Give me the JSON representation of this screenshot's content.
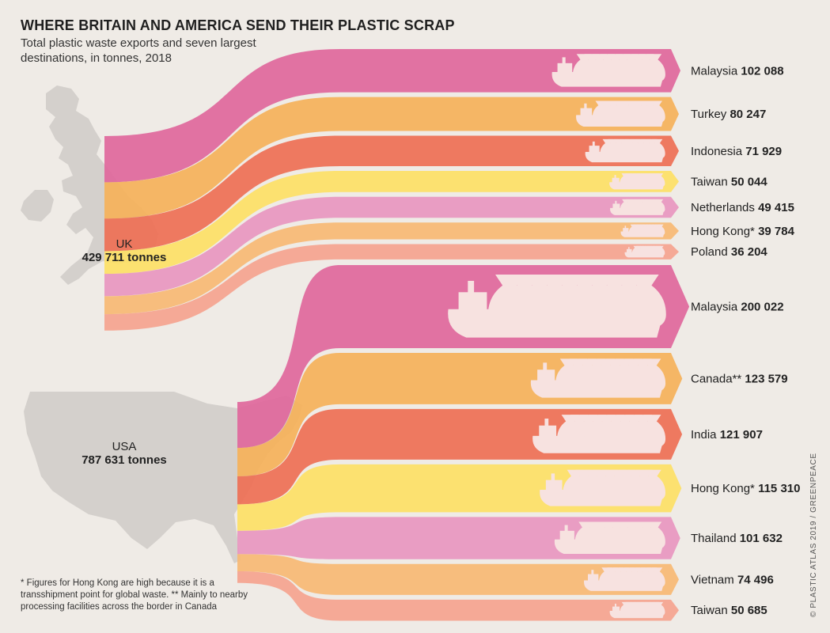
{
  "header": {
    "title": "WHERE BRITAIN AND AMERICA SEND THEIR PLASTIC SCRAP",
    "subtitle": "Total plastic waste exports and seven largest destinations, in tonnes, 2018"
  },
  "footnote": "* Figures for Hong Kong are high because it is a transshipment point for global waste. ** Mainly to nearby processing facilities across the border in Canada",
  "credit": "© PLASTIC ATLAS 2019 / GREENPEACE",
  "colors": {
    "background": "#efebe6",
    "map": "#d4d0cc",
    "ship": "#f7e2e0",
    "palette": [
      "#e0679c",
      "#f5b15a",
      "#ee6f55",
      "#fde066",
      "#e896c0",
      "#f7b874",
      "#f5a38f"
    ]
  },
  "icons": {
    "ship": "cargo-ship-icon",
    "sack": "waste-sack-icon"
  },
  "chart_data": {
    "type": "sankey",
    "unit": "tonnes",
    "year": 2018,
    "sources": [
      {
        "id": "uk",
        "name": "UK",
        "total": 429711,
        "total_label": "429 711 tonnes",
        "destinations": [
          {
            "name": "Malaysia",
            "value": 102088,
            "value_label": "102 088"
          },
          {
            "name": "Turkey",
            "value": 80247,
            "value_label": "80 247"
          },
          {
            "name": "Indonesia",
            "value": 71929,
            "value_label": "71 929"
          },
          {
            "name": "Taiwan",
            "value": 50044,
            "value_label": "50 044"
          },
          {
            "name": "Netherlands",
            "value": 49415,
            "value_label": "49 415"
          },
          {
            "name": "Hong Kong*",
            "value": 39784,
            "value_label": "39 784"
          },
          {
            "name": "Poland",
            "value": 36204,
            "value_label": "36 204"
          }
        ]
      },
      {
        "id": "usa",
        "name": "USA",
        "total": 787631,
        "total_label": "787 631 tonnes",
        "destinations": [
          {
            "name": "Malaysia",
            "value": 200022,
            "value_label": "200 022"
          },
          {
            "name": "Canada**",
            "value": 123579,
            "value_label": "123 579"
          },
          {
            "name": "India",
            "value": 121907,
            "value_label": "121 907"
          },
          {
            "name": "Hong Kong*",
            "value": 115310,
            "value_label": "115 310"
          },
          {
            "name": "Thailand",
            "value": 101632,
            "value_label": "101 632"
          },
          {
            "name": "Vietnam",
            "value": 74496,
            "value_label": "74 496"
          },
          {
            "name": "Taiwan",
            "value": 50685,
            "value_label": "50 685"
          }
        ]
      }
    ]
  }
}
